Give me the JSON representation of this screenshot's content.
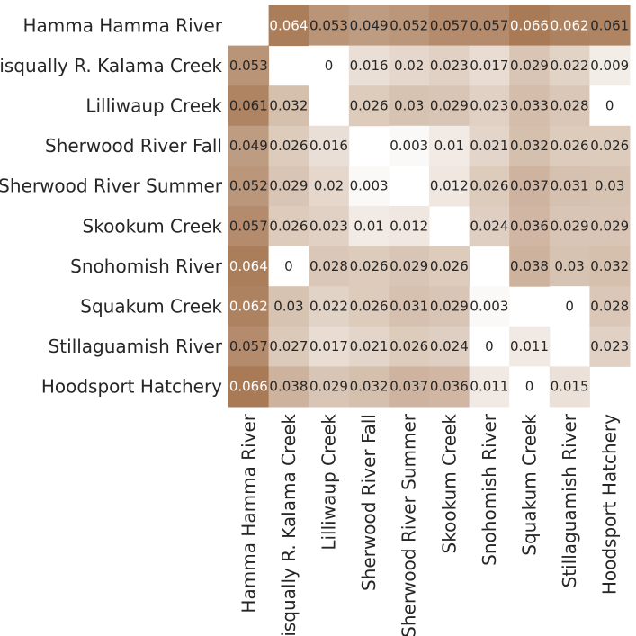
{
  "chart_data": {
    "type": "heatmap",
    "rows": [
      "Hamma Hamma River",
      "Nisqually R. Kalama Creek",
      "Lilliwaup Creek",
      "Sherwood River Fall",
      "Sherwood River Summer",
      "Skookum Creek",
      "Snohomish River",
      "Squakum Creek",
      "Stillaguamish River",
      "Hoodsport Hatchery"
    ],
    "columns": [
      "Hamma Hamma River",
      "Nisqually R. Kalama Creek",
      "Lilliwaup Creek",
      "Sherwood River Fall",
      "Sherwood River Summer",
      "Skookum Creek",
      "Snohomish River",
      "Squakum Creek",
      "Stillaguamish River",
      "Hoodsport Hatchery"
    ],
    "values": [
      [
        null,
        0.064,
        0.053,
        0.049,
        0.052,
        0.057,
        0.057,
        0.066,
        0.062,
        0.061
      ],
      [
        0.053,
        null,
        0,
        0.016,
        0.02,
        0.023,
        0.017,
        0.029,
        0.022,
        0.009
      ],
      [
        0.061,
        0.032,
        null,
        0.026,
        0.03,
        0.029,
        0.023,
        0.033,
        0.028,
        0
      ],
      [
        0.049,
        0.026,
        0.016,
        null,
        0.003,
        0.01,
        0.021,
        0.032,
        0.026,
        0.026
      ],
      [
        0.052,
        0.029,
        0.02,
        0.003,
        null,
        0.012,
        0.026,
        0.037,
        0.031,
        0.03
      ],
      [
        0.057,
        0.026,
        0.023,
        0.01,
        0.012,
        null,
        0.024,
        0.036,
        0.029,
        0.029
      ],
      [
        0.064,
        0,
        0.028,
        0.026,
        0.029,
        0.026,
        null,
        0.038,
        0.03,
        0.032
      ],
      [
        0.062,
        0.03,
        0.022,
        0.026,
        0.031,
        0.029,
        0.003,
        null,
        0,
        0.028
      ],
      [
        0.057,
        0.027,
        0.017,
        0.021,
        0.026,
        0.024,
        0,
        0.011,
        null,
        0.023
      ],
      [
        0.066,
        0.038,
        0.029,
        0.032,
        0.037,
        0.036,
        0.011,
        0,
        0.015,
        null
      ]
    ],
    "value_range": [
      0,
      0.066
    ],
    "color_low": "#ffffff",
    "color_high": "#a87a56",
    "text_dark": "#262626",
    "text_light": "#ffffff",
    "colorbar": false,
    "grid": false
  }
}
